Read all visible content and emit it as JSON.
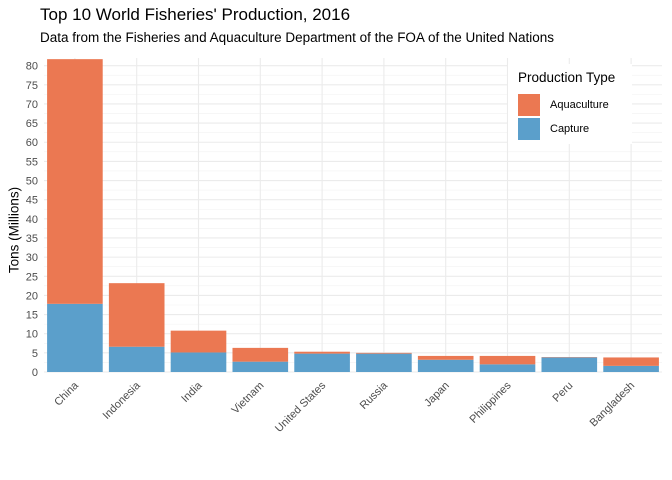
{
  "chart_data": {
    "type": "bar",
    "stacked": true,
    "title": "Top 10 World Fisheries' Production, 2016",
    "subtitle": "Data from the Fisheries and Aquaculture Department of the FOA of the United Nations",
    "xlabel": "",
    "ylabel": "Tons (Millions)",
    "ylim": [
      0,
      82
    ],
    "yticks": [
      0,
      5,
      10,
      15,
      20,
      25,
      30,
      35,
      40,
      45,
      50,
      55,
      60,
      65,
      70,
      75,
      80
    ],
    "categories": [
      "China",
      "Indonesia",
      "India",
      "Vietnam",
      "United States",
      "Russia",
      "Japan",
      "Philippines",
      "Peru",
      "Bangladesh"
    ],
    "series": [
      {
        "name": "Capture",
        "color": "#5B9FCB",
        "values": [
          17.8,
          6.6,
          5.1,
          2.7,
          4.8,
          4.8,
          3.2,
          2.0,
          3.8,
          1.6
        ]
      },
      {
        "name": "Aquaculture",
        "color": "#EB7852",
        "values": [
          63.9,
          16.6,
          5.7,
          3.6,
          0.5,
          0.2,
          1.0,
          2.2,
          0.1,
          2.2
        ]
      }
    ],
    "legend": {
      "title": "Production Type",
      "position": "top-right",
      "entries": [
        {
          "label": "Aquaculture",
          "color": "#EB7852"
        },
        {
          "label": "Capture",
          "color": "#5B9FCB"
        }
      ]
    },
    "grid": true
  }
}
